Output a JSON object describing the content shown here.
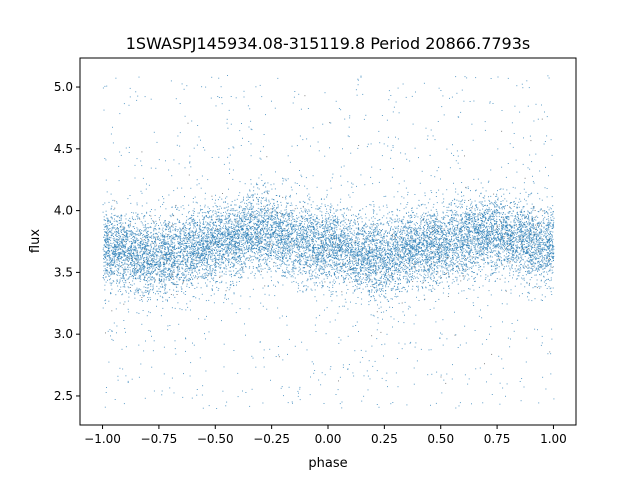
{
  "chart_data": {
    "type": "scatter",
    "title": "1SWASPJ145934.08-315119.8 Period 20866.7793s",
    "xlabel": "phase",
    "ylabel": "flux",
    "xlim": [
      -1.1,
      1.1
    ],
    "ylim": [
      2.265,
      5.235
    ],
    "xticks": [
      -1.0,
      -0.75,
      -0.5,
      -0.25,
      0.0,
      0.25,
      0.5,
      0.75,
      1.0
    ],
    "xtick_labels": [
      "−1.00",
      "−0.75",
      "−0.50",
      "−0.25",
      "0.00",
      "0.25",
      "0.50",
      "0.75",
      "1.00"
    ],
    "yticks": [
      2.5,
      3.0,
      3.5,
      4.0,
      4.5,
      5.0
    ],
    "ytick_labels": [
      "2.5",
      "3.0",
      "3.5",
      "4.0",
      "4.5",
      "5.0"
    ],
    "grid": false,
    "marker_color": "#1f77b4",
    "phase_range": [
      -1.0,
      1.0
    ],
    "binned_mean_flux": {
      "phase": [
        -1.0,
        -0.75,
        -0.5,
        -0.3,
        0.0,
        0.2,
        0.5,
        0.7,
        1.0
      ],
      "flux": [
        3.7,
        3.63,
        3.74,
        3.82,
        3.72,
        3.63,
        3.73,
        3.82,
        3.72
      ]
    },
    "flux_scatter_range": [
      2.4,
      5.1
    ]
  }
}
